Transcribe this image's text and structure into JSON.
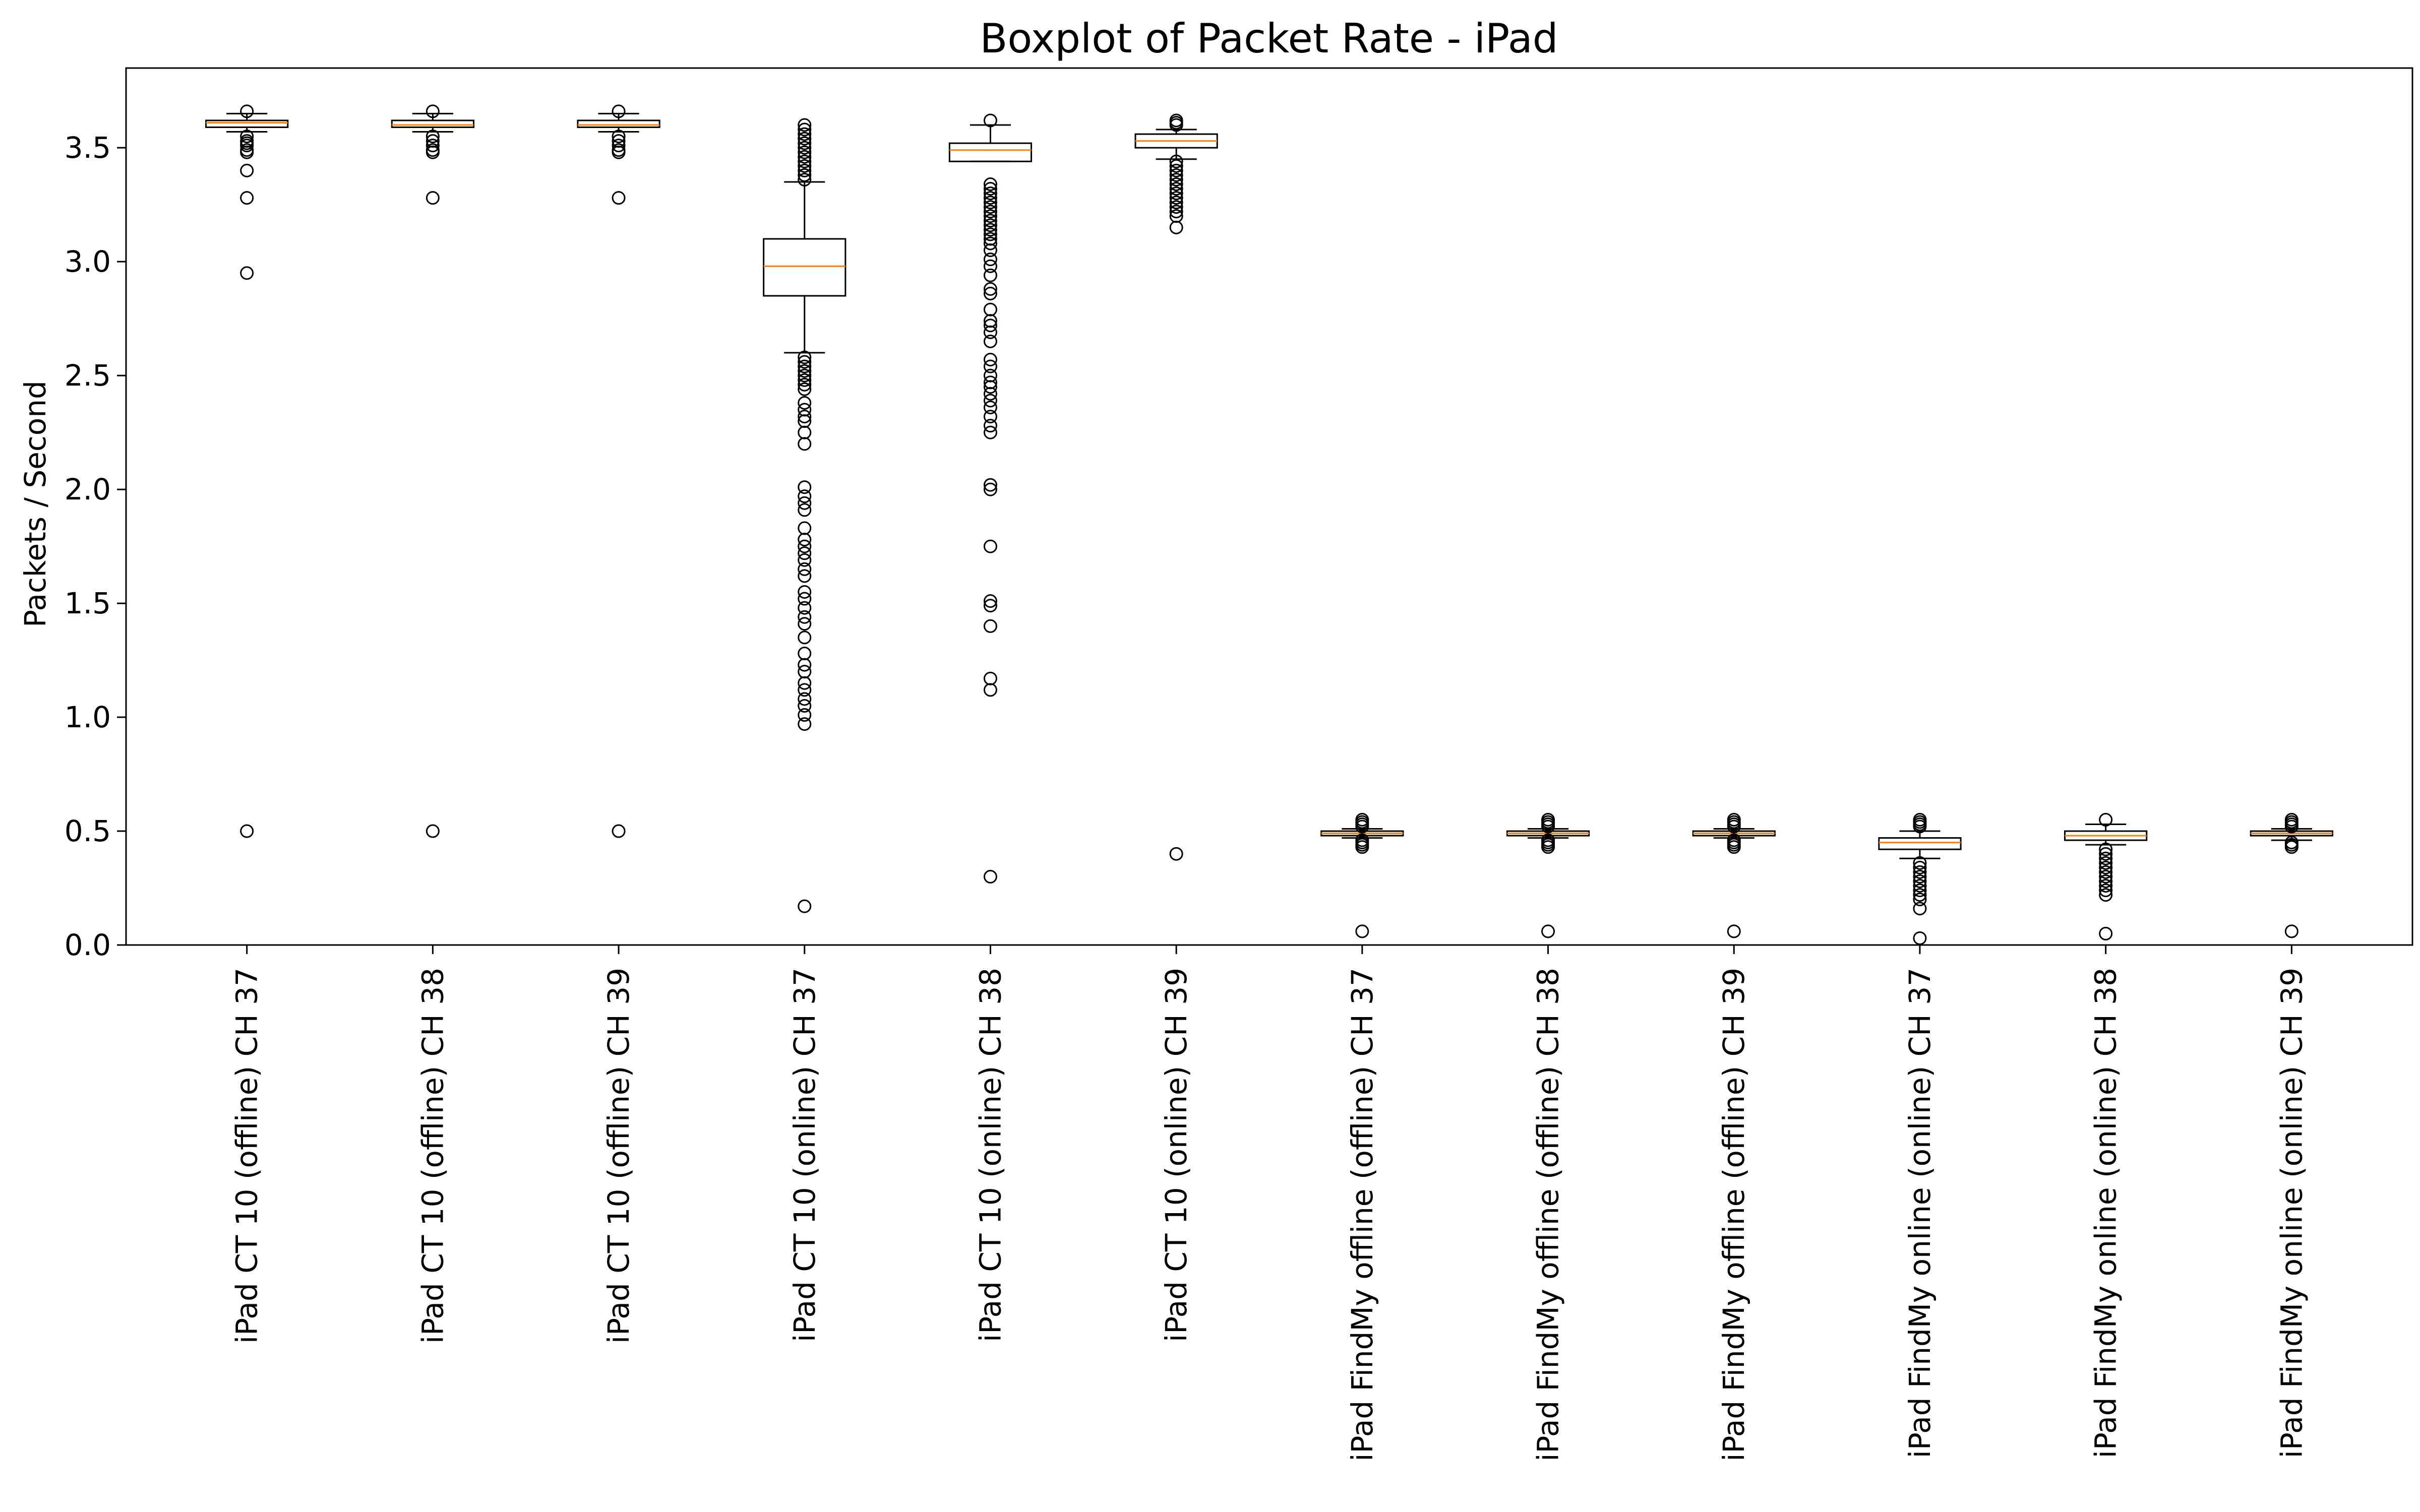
{
  "chart_data": {
    "type": "boxplot",
    "title": "Boxplot of Packet Rate - iPad",
    "xlabel": "",
    "ylabel": "Packets / Second",
    "ylim": [
      0,
      3.85
    ],
    "yticks": [
      "0.0",
      "0.5",
      "1.0",
      "1.5",
      "2.0",
      "2.5",
      "3.0",
      "3.5"
    ],
    "grid": false,
    "colors": {
      "box": "#000000",
      "median": "#ff7f0e",
      "flier": "#000000"
    },
    "categories": [
      "iPad CT 10 (offline) CH 37",
      "iPad CT 10 (offline) CH 38",
      "iPad CT 10 (offline) CH 39",
      "iPad CT 10 (online) CH 37",
      "iPad CT 10 (online) CH 38",
      "iPad CT 10 (online) CH 39",
      "iPad FindMy offline (offline) CH 37",
      "iPad FindMy offline (offline) CH 38",
      "iPad FindMy offline (offline) CH 39",
      "iPad FindMy online (online) CH 37",
      "iPad FindMy online (online) CH 38",
      "iPad FindMy online (online) CH 39"
    ],
    "boxes": [
      {
        "whislo": 3.57,
        "q1": 3.59,
        "med": 3.61,
        "q3": 3.62,
        "whishi": 3.65,
        "fliers": [
          3.66,
          3.55,
          3.53,
          3.52,
          3.51,
          3.49,
          3.48,
          3.4,
          3.28,
          2.95,
          0.5
        ]
      },
      {
        "whislo": 3.57,
        "q1": 3.59,
        "med": 3.6,
        "q3": 3.62,
        "whishi": 3.65,
        "fliers": [
          3.66,
          3.55,
          3.53,
          3.51,
          3.49,
          3.48,
          3.28,
          0.5
        ]
      },
      {
        "whislo": 3.57,
        "q1": 3.59,
        "med": 3.6,
        "q3": 3.62,
        "whishi": 3.65,
        "fliers": [
          3.66,
          3.55,
          3.53,
          3.51,
          3.49,
          3.48,
          3.28,
          0.5
        ]
      },
      {
        "whislo": 2.6,
        "q1": 2.85,
        "med": 2.98,
        "q3": 3.1,
        "whishi": 3.35,
        "fliers": [
          3.6,
          3.58,
          3.56,
          3.54,
          3.52,
          3.5,
          3.48,
          3.46,
          3.44,
          3.42,
          3.4,
          3.38,
          3.36,
          2.58,
          2.56,
          2.54,
          2.52,
          2.5,
          2.48,
          2.46,
          2.44,
          2.38,
          2.35,
          2.32,
          2.3,
          2.25,
          2.2,
          2.01,
          1.97,
          1.94,
          1.91,
          1.83,
          1.78,
          1.75,
          1.72,
          1.69,
          1.65,
          1.62,
          1.55,
          1.52,
          1.48,
          1.44,
          1.41,
          1.35,
          1.28,
          1.23,
          1.2,
          1.15,
          1.12,
          1.08,
          1.05,
          1.01,
          0.97,
          0.17
        ]
      },
      {
        "whislo": 3.44,
        "q1": 3.44,
        "med": 3.49,
        "q3": 3.52,
        "whishi": 3.6,
        "fliers": [
          3.62,
          3.34,
          3.32,
          3.3,
          3.28,
          3.26,
          3.24,
          3.22,
          3.2,
          3.18,
          3.16,
          3.14,
          3.12,
          3.1,
          3.08,
          3.05,
          3.01,
          2.98,
          2.94,
          2.88,
          2.86,
          2.79,
          2.74,
          2.72,
          2.69,
          2.65,
          2.57,
          2.54,
          2.5,
          2.47,
          2.45,
          2.42,
          2.39,
          2.36,
          2.32,
          2.28,
          2.25,
          2.02,
          2.0,
          1.75,
          1.51,
          1.49,
          1.4,
          1.17,
          1.12,
          0.3
        ]
      },
      {
        "whislo": 3.45,
        "q1": 3.5,
        "med": 3.53,
        "q3": 3.56,
        "whishi": 3.58,
        "fliers": [
          3.62,
          3.61,
          3.6,
          3.44,
          3.42,
          3.4,
          3.38,
          3.36,
          3.34,
          3.32,
          3.3,
          3.28,
          3.26,
          3.24,
          3.22,
          3.2,
          3.15,
          0.4
        ]
      },
      {
        "whislo": 0.47,
        "q1": 0.48,
        "med": 0.49,
        "q3": 0.5,
        "whishi": 0.51,
        "fliers": [
          0.55,
          0.54,
          0.53,
          0.52,
          0.46,
          0.45,
          0.44,
          0.43,
          0.06
        ]
      },
      {
        "whislo": 0.47,
        "q1": 0.48,
        "med": 0.49,
        "q3": 0.5,
        "whishi": 0.51,
        "fliers": [
          0.55,
          0.54,
          0.53,
          0.52,
          0.46,
          0.45,
          0.44,
          0.43,
          0.06
        ]
      },
      {
        "whislo": 0.47,
        "q1": 0.48,
        "med": 0.49,
        "q3": 0.5,
        "whishi": 0.51,
        "fliers": [
          0.55,
          0.54,
          0.53,
          0.52,
          0.46,
          0.45,
          0.44,
          0.43,
          0.06
        ]
      },
      {
        "whislo": 0.38,
        "q1": 0.42,
        "med": 0.45,
        "q3": 0.47,
        "whishi": 0.5,
        "fliers": [
          0.55,
          0.54,
          0.53,
          0.52,
          0.36,
          0.34,
          0.32,
          0.3,
          0.28,
          0.26,
          0.24,
          0.22,
          0.2,
          0.16,
          0.03
        ]
      },
      {
        "whislo": 0.44,
        "q1": 0.46,
        "med": 0.48,
        "q3": 0.5,
        "whishi": 0.53,
        "fliers": [
          0.55,
          0.42,
          0.4,
          0.38,
          0.36,
          0.34,
          0.32,
          0.3,
          0.28,
          0.26,
          0.24,
          0.22,
          0.05
        ]
      },
      {
        "whislo": 0.46,
        "q1": 0.48,
        "med": 0.49,
        "q3": 0.5,
        "whishi": 0.51,
        "fliers": [
          0.55,
          0.54,
          0.53,
          0.52,
          0.45,
          0.44,
          0.43,
          0.06
        ]
      }
    ]
  }
}
